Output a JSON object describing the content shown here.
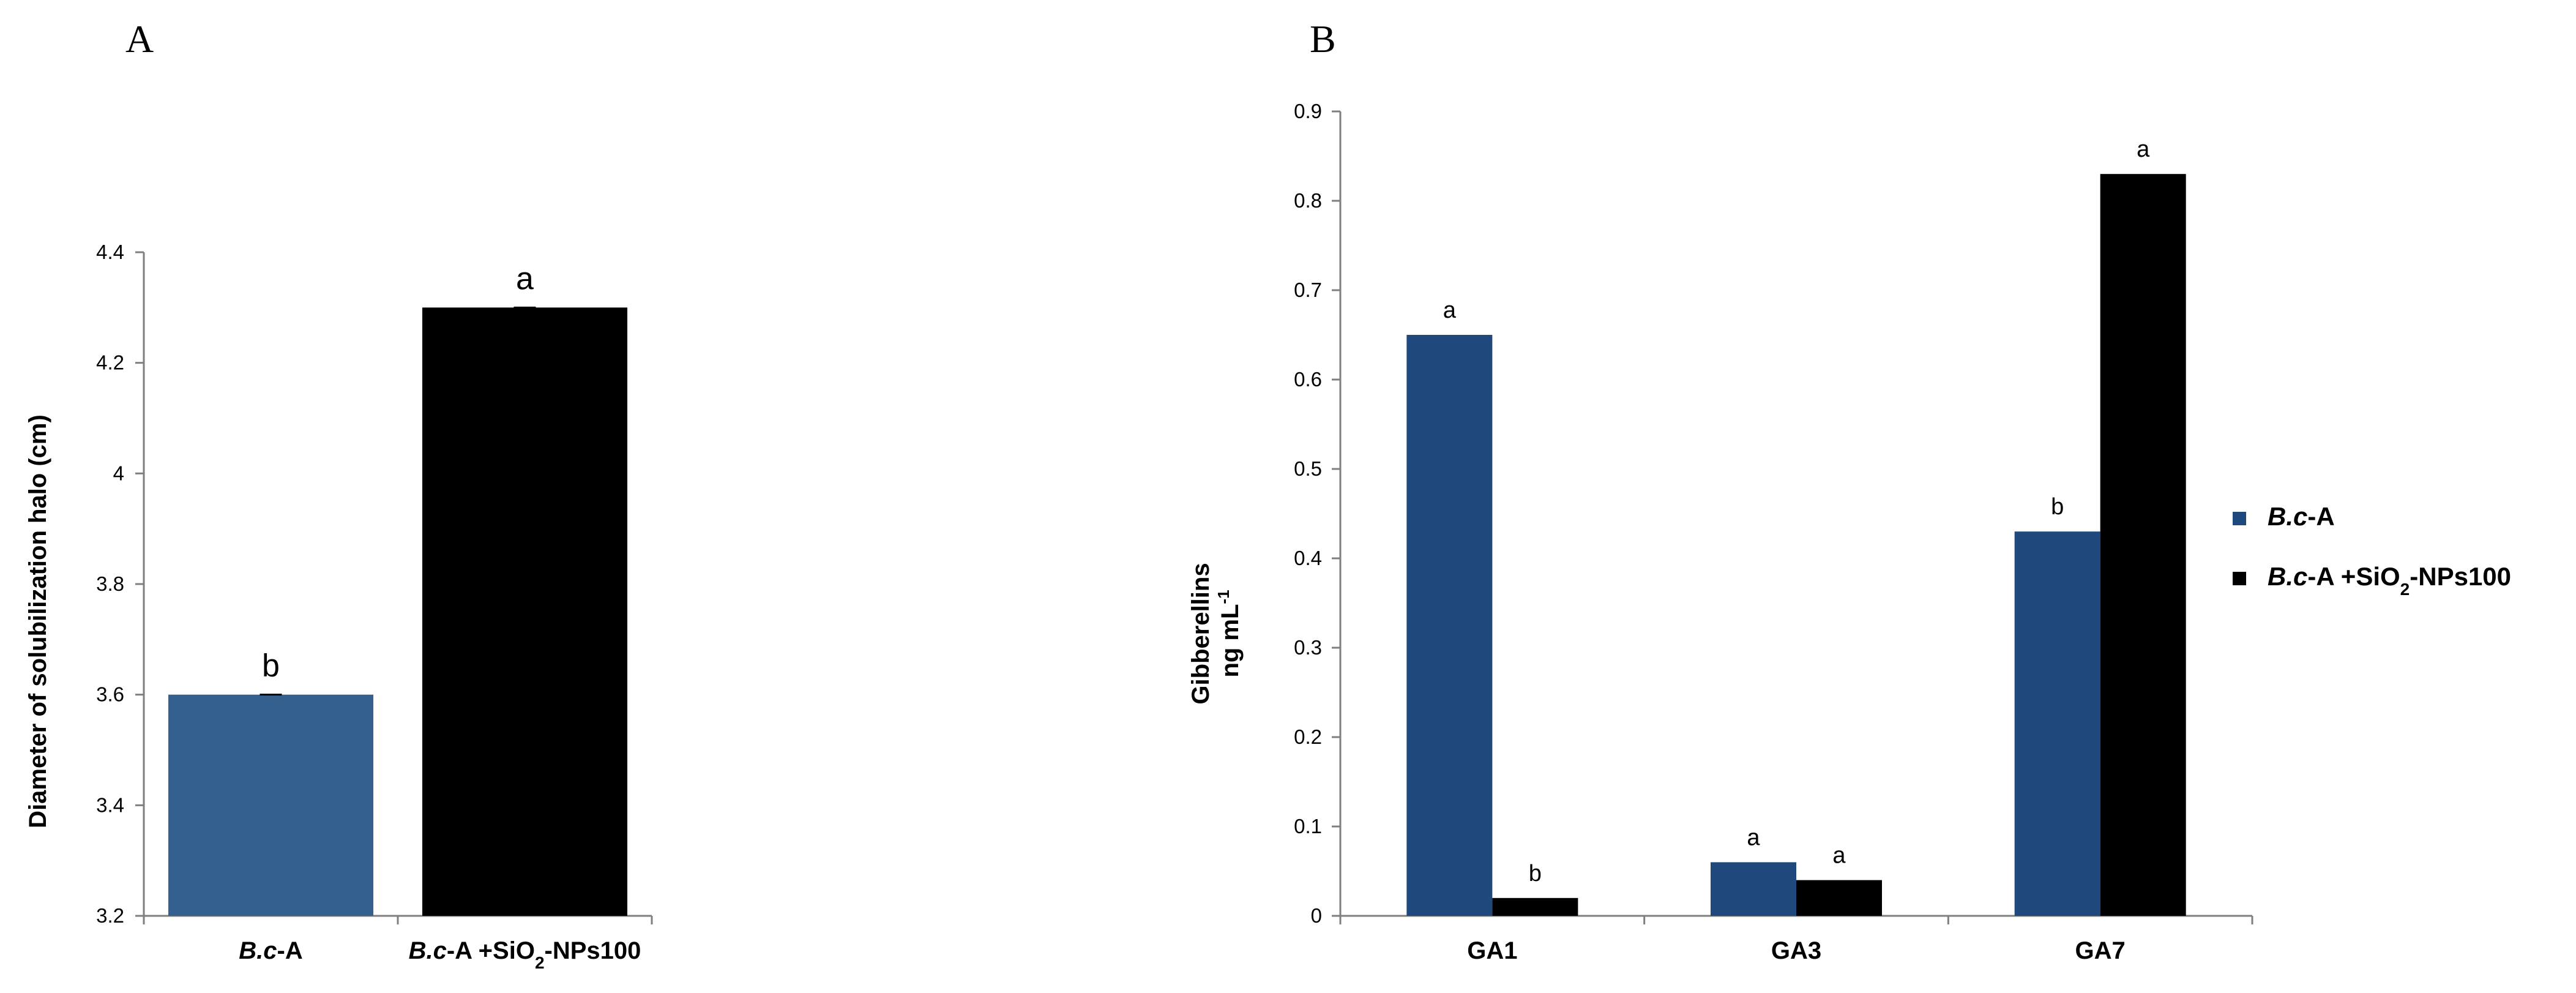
{
  "colors": {
    "blue": "#2E5C8F",
    "black": "#000000"
  },
  "chart_data": [
    {
      "type": "bar",
      "panel": "A",
      "categories": [
        {
          "italic": "B.c",
          "rest": "-A"
        },
        {
          "italic": "B.c",
          "rest": "-A +SiO",
          "sub": "2",
          "tail": "-NPs100"
        }
      ],
      "values": [
        3.6,
        4.3
      ],
      "bar_colors": [
        "#34608F",
        "#000000"
      ],
      "significance": [
        "b",
        "a"
      ],
      "ylabel": "Diameter of solubilization halo (cm)",
      "ylim": [
        3.2,
        4.4
      ],
      "yticks": [
        "3.2",
        "3.4",
        "3.6",
        "3.8",
        "4",
        "4.2",
        "4.4"
      ]
    },
    {
      "type": "bar",
      "panel": "B",
      "categories": [
        "GA1",
        "GA3",
        "GA7"
      ],
      "series": [
        {
          "name": {
            "italic": "B.c",
            "rest": "-A"
          },
          "color": "#1F497D",
          "values": [
            0.65,
            0.06,
            0.43
          ],
          "significance": [
            "a",
            "a",
            "b"
          ]
        },
        {
          "name": {
            "italic": "B.c",
            "rest": "-A +SiO",
            "sub": "2",
            "tail": "-NPs100"
          },
          "color": "#000000",
          "values": [
            0.02,
            0.04,
            0.83
          ],
          "significance": [
            "b",
            "a",
            "a"
          ]
        }
      ],
      "ylabel_line1": "Gibberellins",
      "ylabel_line2": "ng mL",
      "ylabel_sup": "-1",
      "ylim": [
        0,
        0.9
      ],
      "yticks": [
        "0",
        "0.1",
        "0.2",
        "0.3",
        "0.4",
        "0.5",
        "0.6",
        "0.7",
        "0.8",
        "0.9"
      ],
      "legend_position": "right"
    }
  ]
}
